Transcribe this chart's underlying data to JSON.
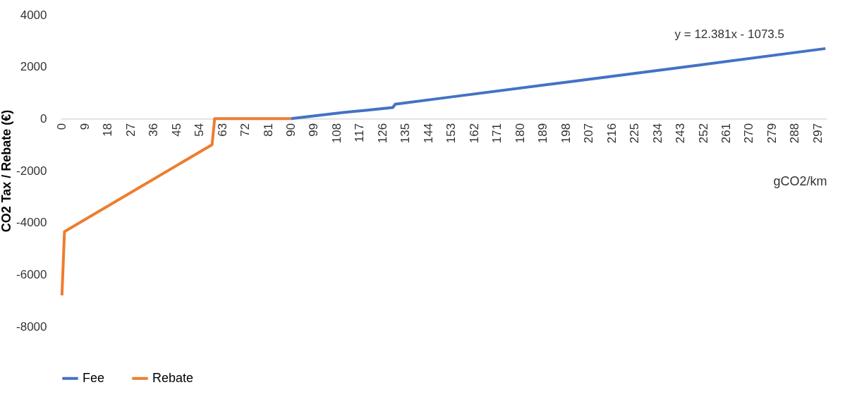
{
  "chart_data": {
    "type": "line",
    "xlabel": "gCO2/km",
    "ylabel": "CO2 Tax / Rebate (€)",
    "annotations": [
      "y = 12.381x - 1073.5"
    ],
    "xlim": [
      -0.5,
      300.5
    ],
    "xticks": [
      0,
      9,
      18,
      27,
      36,
      45,
      54,
      63,
      72,
      81,
      90,
      99,
      108,
      117,
      126,
      135,
      144,
      153,
      162,
      171,
      180,
      189,
      198,
      207,
      216,
      225,
      234,
      243,
      252,
      261,
      270,
      279,
      288,
      297
    ],
    "ylim": [
      -8000,
      4000
    ],
    "yticks": [
      -8000,
      -6000,
      -4000,
      -2000,
      0,
      2000,
      4000
    ],
    "grid": false,
    "legend": "bottom",
    "line_style": "solid",
    "marker": "none",
    "series": [
      {
        "name": "Fee",
        "color": "#4472c4",
        "x": [
          90,
          100,
          110,
          120,
          130,
          131,
          150,
          200,
          250,
          300
        ],
        "values": [
          0,
          120,
          230,
          330,
          430,
          560,
          800,
          1430,
          2060,
          2700
        ]
      },
      {
        "name": "Rebate",
        "color": "#ed7d31",
        "x": [
          0,
          1,
          59,
          60,
          90
        ],
        "values": [
          -6800,
          -4350,
          -1000,
          0,
          0
        ]
      }
    ]
  }
}
